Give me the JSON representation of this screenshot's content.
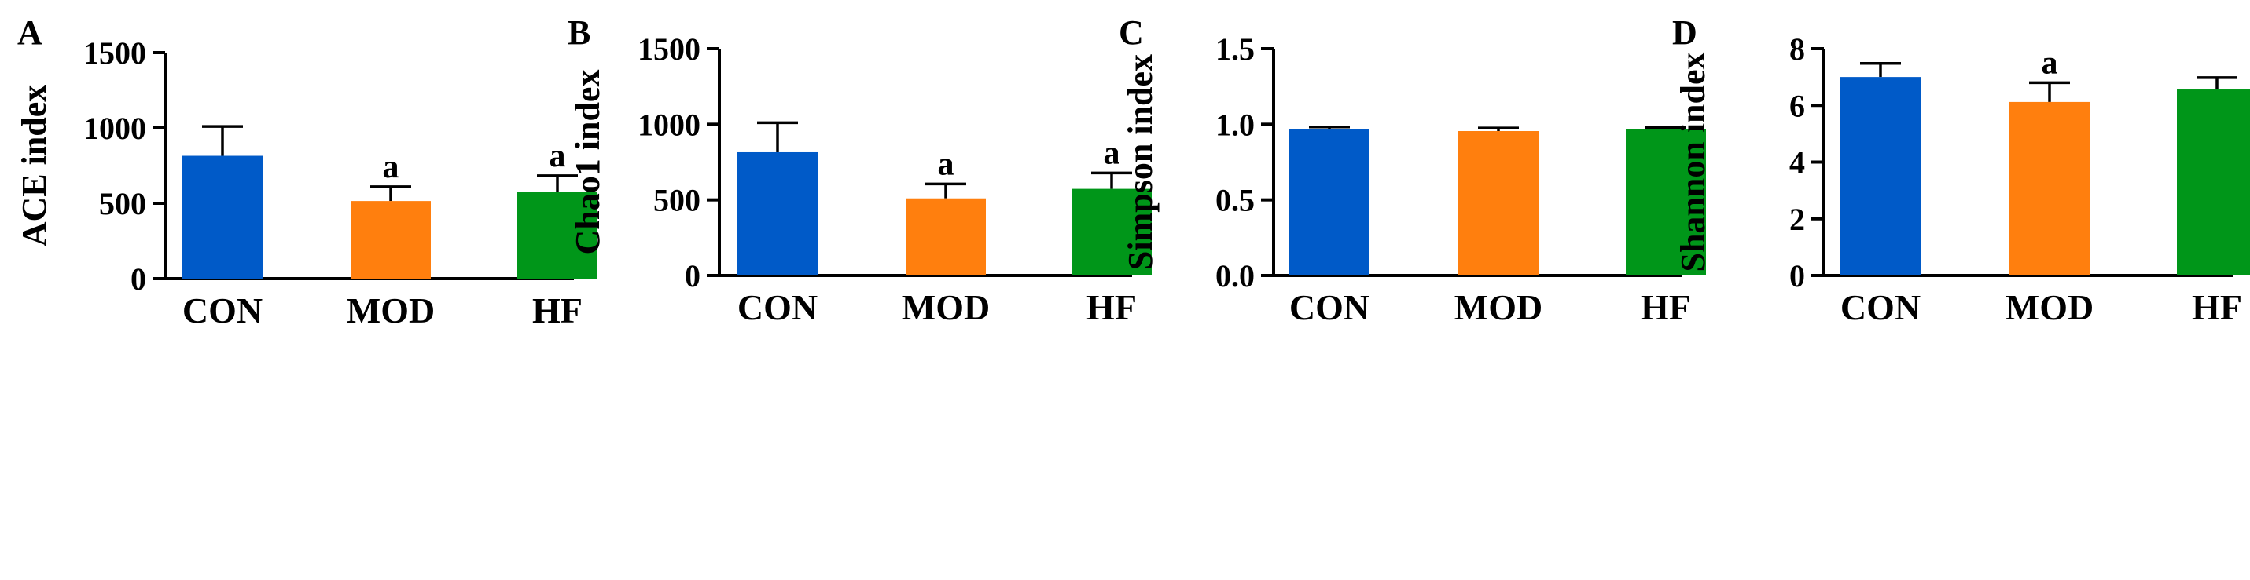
{
  "colors": {
    "CON": "#005ac8",
    "MOD": "#ff7f0e",
    "HF": "#009619",
    "axis": "#000000"
  },
  "chart_data": [
    {
      "type": "bar",
      "panel": "A",
      "title": "",
      "xlabel": "",
      "ylabel": "ACE index",
      "categories": [
        "CON",
        "MOD",
        "HF"
      ],
      "values": [
        815,
        515,
        578
      ],
      "errors": [
        195,
        95,
        105
      ],
      "significance": [
        "",
        "a",
        "a"
      ],
      "ylim": [
        0,
        1500
      ],
      "yticks": [
        "0",
        "500",
        "1000",
        "1500"
      ],
      "ytick_values": [
        0,
        500,
        1000,
        1500
      ]
    },
    {
      "type": "bar",
      "panel": "B",
      "title": "",
      "xlabel": "",
      "ylabel": "Chao1 index",
      "categories": [
        "CON",
        "MOD",
        "HF"
      ],
      "values": [
        815,
        510,
        573
      ],
      "errors": [
        195,
        95,
        105
      ],
      "significance": [
        "",
        "a",
        "a"
      ],
      "ylim": [
        0,
        1500
      ],
      "yticks": [
        "0",
        "500",
        "1000",
        "1500"
      ],
      "ytick_values": [
        0,
        500,
        1000,
        1500
      ]
    },
    {
      "type": "bar",
      "panel": "C",
      "title": "",
      "xlabel": "",
      "ylabel": "Simpson index",
      "categories": [
        "CON",
        "MOD",
        "HF"
      ],
      "values": [
        0.97,
        0.955,
        0.97
      ],
      "errors": [
        0.012,
        0.02,
        0.008
      ],
      "significance": [
        "",
        "",
        ""
      ],
      "ylim": [
        0,
        1.5
      ],
      "yticks": [
        "0.0",
        "0.5",
        "1.0",
        "1.5"
      ],
      "ytick_values": [
        0,
        0.5,
        1.0,
        1.5
      ]
    },
    {
      "type": "bar",
      "panel": "D",
      "title": "",
      "xlabel": "",
      "ylabel": "Shannon index",
      "categories": [
        "CON",
        "MOD",
        "HF"
      ],
      "values": [
        7.0,
        6.12,
        6.56
      ],
      "errors": [
        0.48,
        0.68,
        0.42
      ],
      "significance": [
        "",
        "a",
        ""
      ],
      "ylim": [
        0,
        8
      ],
      "yticks": [
        "0",
        "2",
        "4",
        "6",
        "8"
      ],
      "ytick_values": [
        0,
        2,
        4,
        6,
        8
      ]
    }
  ]
}
